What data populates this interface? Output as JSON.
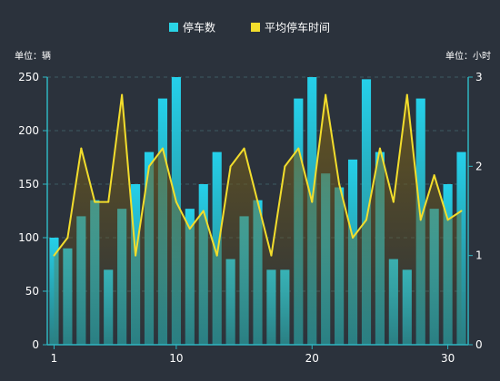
{
  "chart_data": {
    "type": "bar",
    "legend": {
      "position": "top-center",
      "items": [
        {
          "label": "停车数",
          "color": "#2ad4e6",
          "marker": "square"
        },
        {
          "label": "平均停车时间",
          "color": "#f2dd2c",
          "marker": "square"
        }
      ]
    },
    "y_left": {
      "unit_label": "单位：辆",
      "min": 0,
      "max": 250,
      "ticks": [
        0,
        50,
        100,
        150,
        200,
        250
      ]
    },
    "y_right": {
      "unit_label": "单位：小时",
      "min": 0,
      "max": 3,
      "ticks": [
        0,
        1,
        2,
        3
      ]
    },
    "x": {
      "categories": [
        1,
        2,
        3,
        4,
        5,
        6,
        7,
        8,
        9,
        10,
        11,
        12,
        13,
        14,
        15,
        16,
        17,
        18,
        19,
        20,
        21,
        22,
        23,
        24,
        25,
        26,
        27,
        28,
        29,
        30,
        31
      ],
      "tick_labels": [
        {
          "value": 1,
          "label": "1"
        },
        {
          "value": 10,
          "label": "10"
        },
        {
          "value": 20,
          "label": "20"
        },
        {
          "value": 30,
          "label": "30"
        }
      ]
    },
    "series": [
      {
        "name": "停车数",
        "type": "bar",
        "axis": "left",
        "values": [
          100,
          90,
          120,
          135,
          70,
          127,
          150,
          180,
          230,
          250,
          127,
          150,
          180,
          80,
          120,
          135,
          70,
          70,
          230,
          250,
          160,
          147,
          173,
          248,
          180,
          80,
          70,
          230,
          127,
          150,
          180
        ]
      },
      {
        "name": "平均停车时间",
        "type": "line",
        "axis": "right",
        "values": [
          1.0,
          1.2,
          2.2,
          1.6,
          1.6,
          2.8,
          1.0,
          2.0,
          2.2,
          1.6,
          1.3,
          1.5,
          1.0,
          2.0,
          2.2,
          1.6,
          1.0,
          2.0,
          2.2,
          1.6,
          2.8,
          1.8,
          1.2,
          1.4,
          2.2,
          1.6,
          2.8,
          1.4,
          1.9,
          1.4,
          1.5
        ]
      }
    ],
    "grid": true,
    "colors": {
      "bar_top": "#25d0ea",
      "bar_bottom": "#2a8c8f",
      "line": "#f2dd2c",
      "axis": "#2fb6c2",
      "grid": "#3d5a62"
    }
  }
}
